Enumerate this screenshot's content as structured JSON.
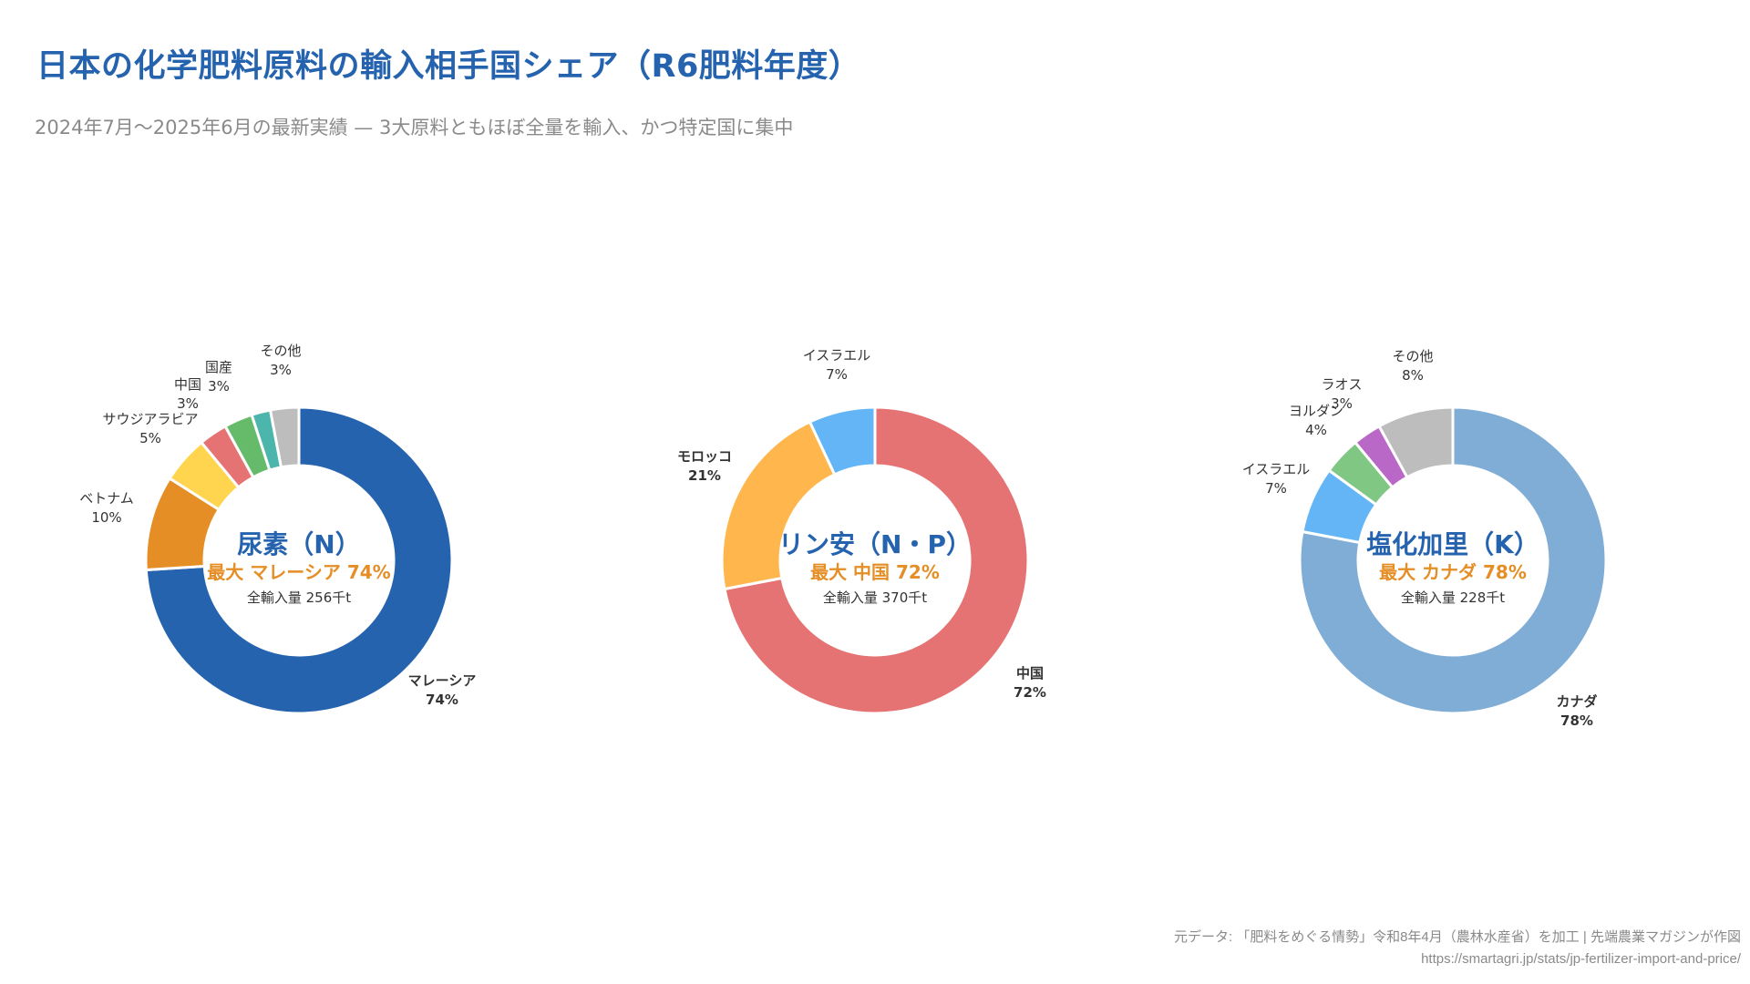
{
  "header": {
    "title": "日本の化学肥料原料の輸入相手国シェア（R6肥料年度）",
    "subtitle": "2024年7月〜2025年6月の最新実績 — 3大原料ともほぼ全量を輸入、かつ特定国に集中"
  },
  "footer": {
    "source": "元データ: 「肥料をめぐる情勢」令和8年4月（農林水産省）を加工 | 先端農業マガジンが作図",
    "url": "https://smartagri.jp/stats/jp-fertilizer-import-and-price/"
  },
  "colors": {
    "title": "#2563AF",
    "highlight": "#E58E26",
    "text": "#333333"
  },
  "chart_data": [
    {
      "type": "pie",
      "variant": "donut",
      "title": "尿素（N）",
      "highlight": "最大 マレーシア 74%",
      "total": "全輸入量 256千t",
      "unit": "%",
      "slices": [
        {
          "label": "マレーシア",
          "value": 74,
          "display": "74%",
          "color": "#2563AF",
          "bold": true
        },
        {
          "label": "ベトナム",
          "value": 10,
          "display": "10%",
          "color": "#E58E26"
        },
        {
          "label": "サウジアラビア",
          "value": 5,
          "display": "5%",
          "color": "#FFD54F"
        },
        {
          "label": "中国",
          "value": 3,
          "display": "3%",
          "color": "#E57373"
        },
        {
          "label": "国産",
          "value": 3,
          "display": "3%",
          "color": "#66BB6A"
        },
        {
          "label": "",
          "value": 2,
          "display": "",
          "color": "#4DB6AC"
        },
        {
          "label": "その他",
          "value": 3,
          "display": "3%",
          "color": "#BDBDBD"
        }
      ]
    },
    {
      "type": "pie",
      "variant": "donut",
      "title": "リン安（N・P）",
      "highlight": "最大 中国 72%",
      "total": "全輸入量 370千t",
      "unit": "%",
      "slices": [
        {
          "label": "中国",
          "value": 72,
          "display": "72%",
          "color": "#E57373",
          "bold": true
        },
        {
          "label": "モロッコ",
          "value": 21,
          "display": "21%",
          "color": "#FFB74D",
          "bold": true
        },
        {
          "label": "イスラエル",
          "value": 7,
          "display": "7%",
          "color": "#64B5F6"
        }
      ]
    },
    {
      "type": "pie",
      "variant": "donut",
      "title": "塩化加里（K）",
      "highlight": "最大 カナダ 78%",
      "total": "全輸入量 228千t",
      "unit": "%",
      "slices": [
        {
          "label": "カナダ",
          "value": 78,
          "display": "78%",
          "color": "#7FADD6",
          "bold": true
        },
        {
          "label": "イスラエル",
          "value": 7,
          "display": "7%",
          "color": "#64B5F6"
        },
        {
          "label": "ヨルダン",
          "value": 4,
          "display": "4%",
          "color": "#81C784"
        },
        {
          "label": "ラオス",
          "value": 3,
          "display": "3%",
          "color": "#BA68C8"
        },
        {
          "label": "その他",
          "value": 8,
          "display": "8%",
          "color": "#BDBDBD"
        }
      ]
    }
  ]
}
